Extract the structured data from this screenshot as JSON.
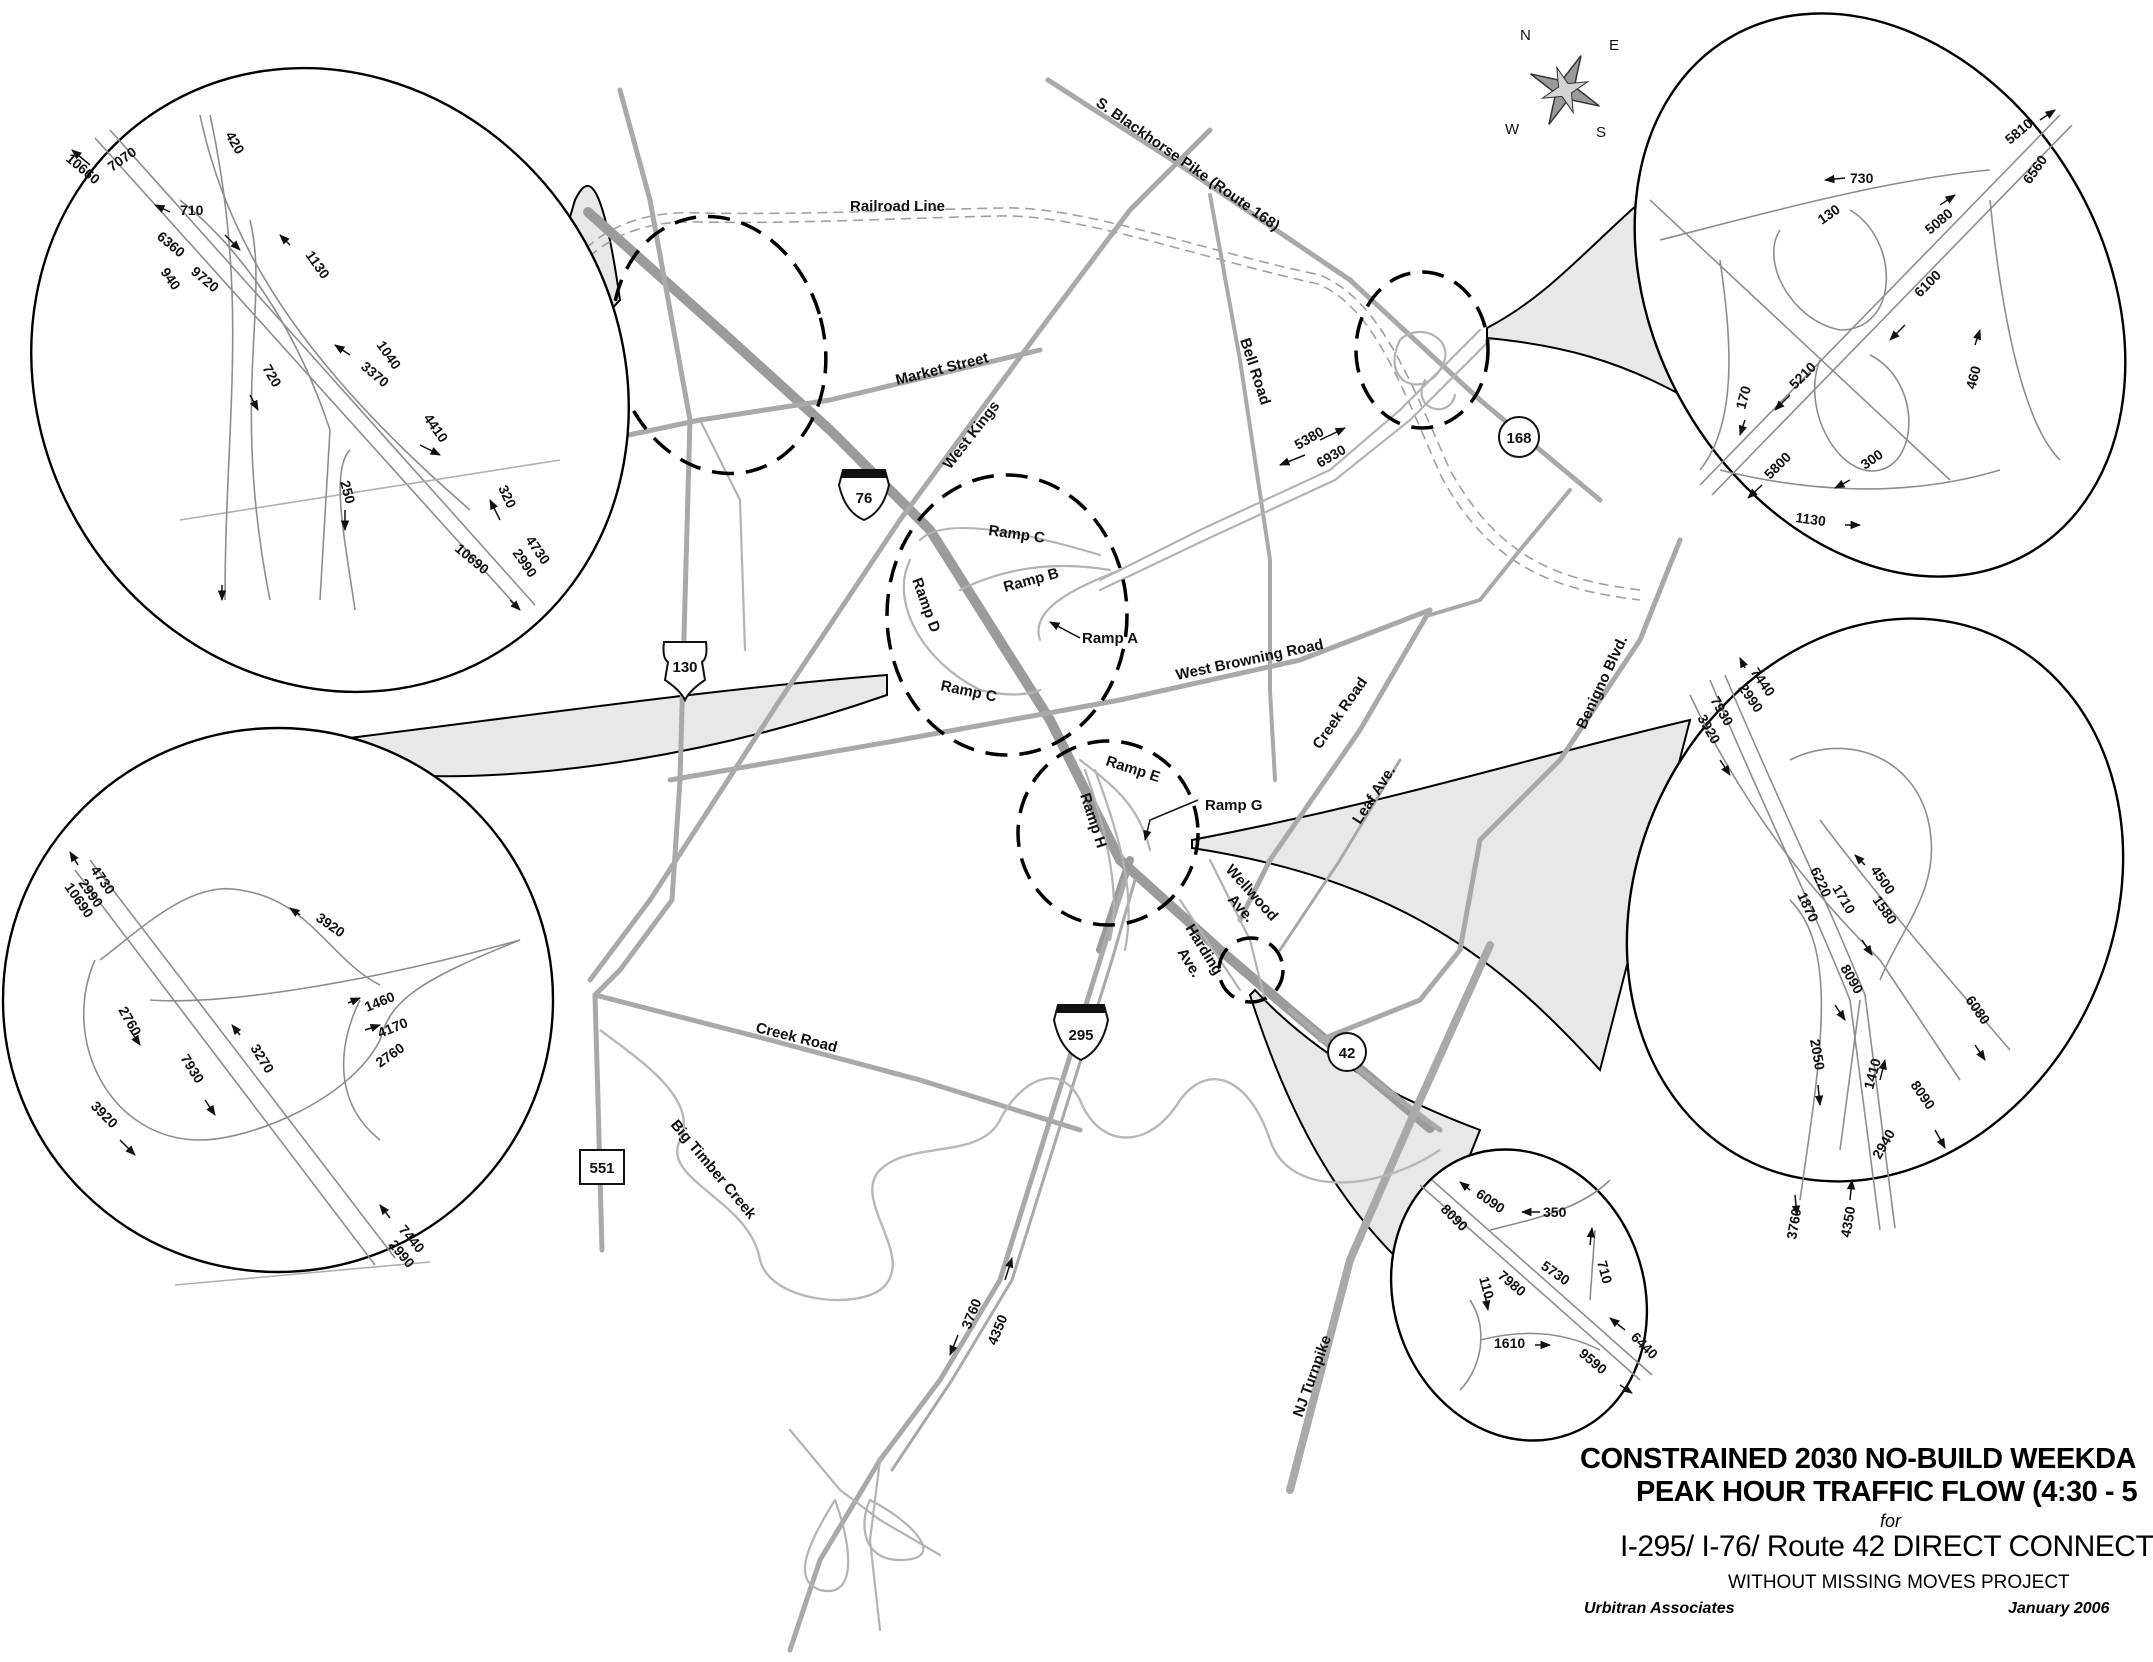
{
  "title": {
    "line1": "CONSTRAINED 2030 NO-BUILD WEEKDA",
    "line2": "PEAK HOUR TRAFFIC FLOW (4:30 - 5",
    "for": "for",
    "project": "I-295/ I-76/ Route 42 DIRECT CONNECT",
    "subtitle": "WITHOUT MISSING MOVES PROJECT",
    "firm": "Urbitran Associates",
    "date": "January 2006"
  },
  "compass": {
    "n": "N",
    "e": "E",
    "s": "S",
    "w": "W"
  },
  "shields": {
    "i76": "76",
    "i295": "295",
    "us130": "130",
    "rt168": "168",
    "rt42": "42",
    "rt551": "551"
  },
  "roads": {
    "railroad": "Railroad  Line",
    "blackhorse": "S. Blackhorse  Pike (Route 168)",
    "market": "Market Street",
    "west_kings": "West    Kings",
    "bell": "Bell Road",
    "browning": "West  Browning  Road",
    "creek_road_ne": "Creek Road",
    "leaf": "Leaf Ave.",
    "benigno": "Benigno Blvd.",
    "wellwood_1": "Wellwood",
    "wellwood_2": "Ave.",
    "harding_1": "Harding",
    "harding_2": "Ave.",
    "creek_road_sw": "Creek Road",
    "big_timber": "Big    Timber  Creek",
    "nj_turnpike": "NJ Turnpike",
    "ramp_c_top": "Ramp C",
    "ramp_b": "Ramp B",
    "ramp_a": "Ramp A",
    "ramp_d": "Ramp D",
    "ramp_c_bottom": "Ramp C",
    "ramp_e": "Ramp E",
    "ramp_g": "Ramp G",
    "ramp_h": "Ramp H"
  },
  "volumes": {
    "main_5380": "5380",
    "main_6930": "6930",
    "main_3760": "3760",
    "main_4350": "4350",
    "tl_7070": "7070",
    "tl_10660": "10660",
    "tl_710": "710",
    "tl_420": "420",
    "tl_6360": "6360",
    "tl_1130": "1130",
    "tl_940": "940",
    "tl_9720": "9720",
    "tl_1040": "1040",
    "tl_3370": "3370",
    "tl_720": "720",
    "tl_4410": "4410",
    "tl_250": "250",
    "tl_320": "320",
    "tl_4730": "4730",
    "tl_2990": "2990",
    "tl_10690": "10690",
    "tr_730": "730",
    "tr_5810": "5810",
    "tr_6560": "6560",
    "tr_130": "130",
    "tr_5080": "5080",
    "tr_6100": "6100",
    "tr_170": "170",
    "tr_5210": "5210",
    "tr_460": "460",
    "tr_5800": "5800",
    "tr_300": "300",
    "tr_1130": "1130",
    "ml_4730": "4730",
    "ml_2990a": "2990",
    "ml_10690": "10690",
    "ml_3920a": "3920",
    "ml_1460": "1460",
    "ml_4170": "4170",
    "ml_2760a": "2760",
    "ml_2760b": "2760",
    "ml_7930": "7930",
    "ml_3270": "3270",
    "ml_3920b": "3920",
    "ml_7440": "7440",
    "ml_2990b": "2990",
    "mr_7440": "7440",
    "mr_2990": "2990",
    "mr_7930": "7930",
    "mr_3920": "3920",
    "mr_4500": "4500",
    "mr_6220": "6220",
    "mr_1710": "1710",
    "mr_1870": "1870",
    "mr_1580": "1580",
    "mr_8090a": "8090",
    "mr_6080": "6080",
    "mr_2050": "2050",
    "mr_1410": "1410",
    "mr_8090b": "8090",
    "mr_2940": "2940",
    "mr_3760": "3760",
    "mr_4350": "4350",
    "br_6090": "6090",
    "br_350": "350",
    "br_8090": "8090",
    "br_5730": "5730",
    "br_710": "710",
    "br_110": "110",
    "br_7980": "7980",
    "br_1610": "1610",
    "br_9590": "9590",
    "br_6440": "6440"
  }
}
